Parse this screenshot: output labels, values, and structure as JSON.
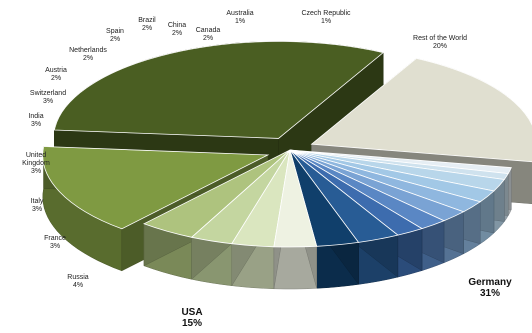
{
  "chart_data": {
    "type": "pie",
    "title": "",
    "categories": [
      "Germany",
      "Rest of the World",
      "Czech Republic",
      "Australia",
      "Canada",
      "China",
      "Brazil",
      "Spain",
      "Netherlands",
      "Austria",
      "Switzerland",
      "India",
      "United Kingdom",
      "Italy",
      "France",
      "Russia",
      "USA"
    ],
    "values": [
      31,
      20,
      1,
      1,
      2,
      2,
      2,
      2,
      2,
      2,
      3,
      3,
      3,
      3,
      3,
      4,
      15
    ],
    "value_labels": [
      "31%",
      "20%",
      "1%",
      "1%",
      "2%",
      "2%",
      "2%",
      "2%",
      "2%",
      "2%",
      "3%",
      "3%",
      "3%",
      "3%",
      "3%",
      "4%",
      "15%"
    ],
    "colors": [
      "#4a5e22",
      "#e0dfd0",
      "#e6eef4",
      "#cfe2ee",
      "#b8d6ea",
      "#a2c8e6",
      "#8fb7df",
      "#7aa3d4",
      "#5a87c4",
      "#3d6cae",
      "#285c95",
      "#103f6b",
      "#eef2e2",
      "#dae6bf",
      "#c4d6a0",
      "#aec37e",
      "#7f9a42"
    ],
    "exploded": [
      "Germany",
      "USA",
      "Rest of the World"
    ],
    "style": "3d",
    "legend": "none"
  }
}
